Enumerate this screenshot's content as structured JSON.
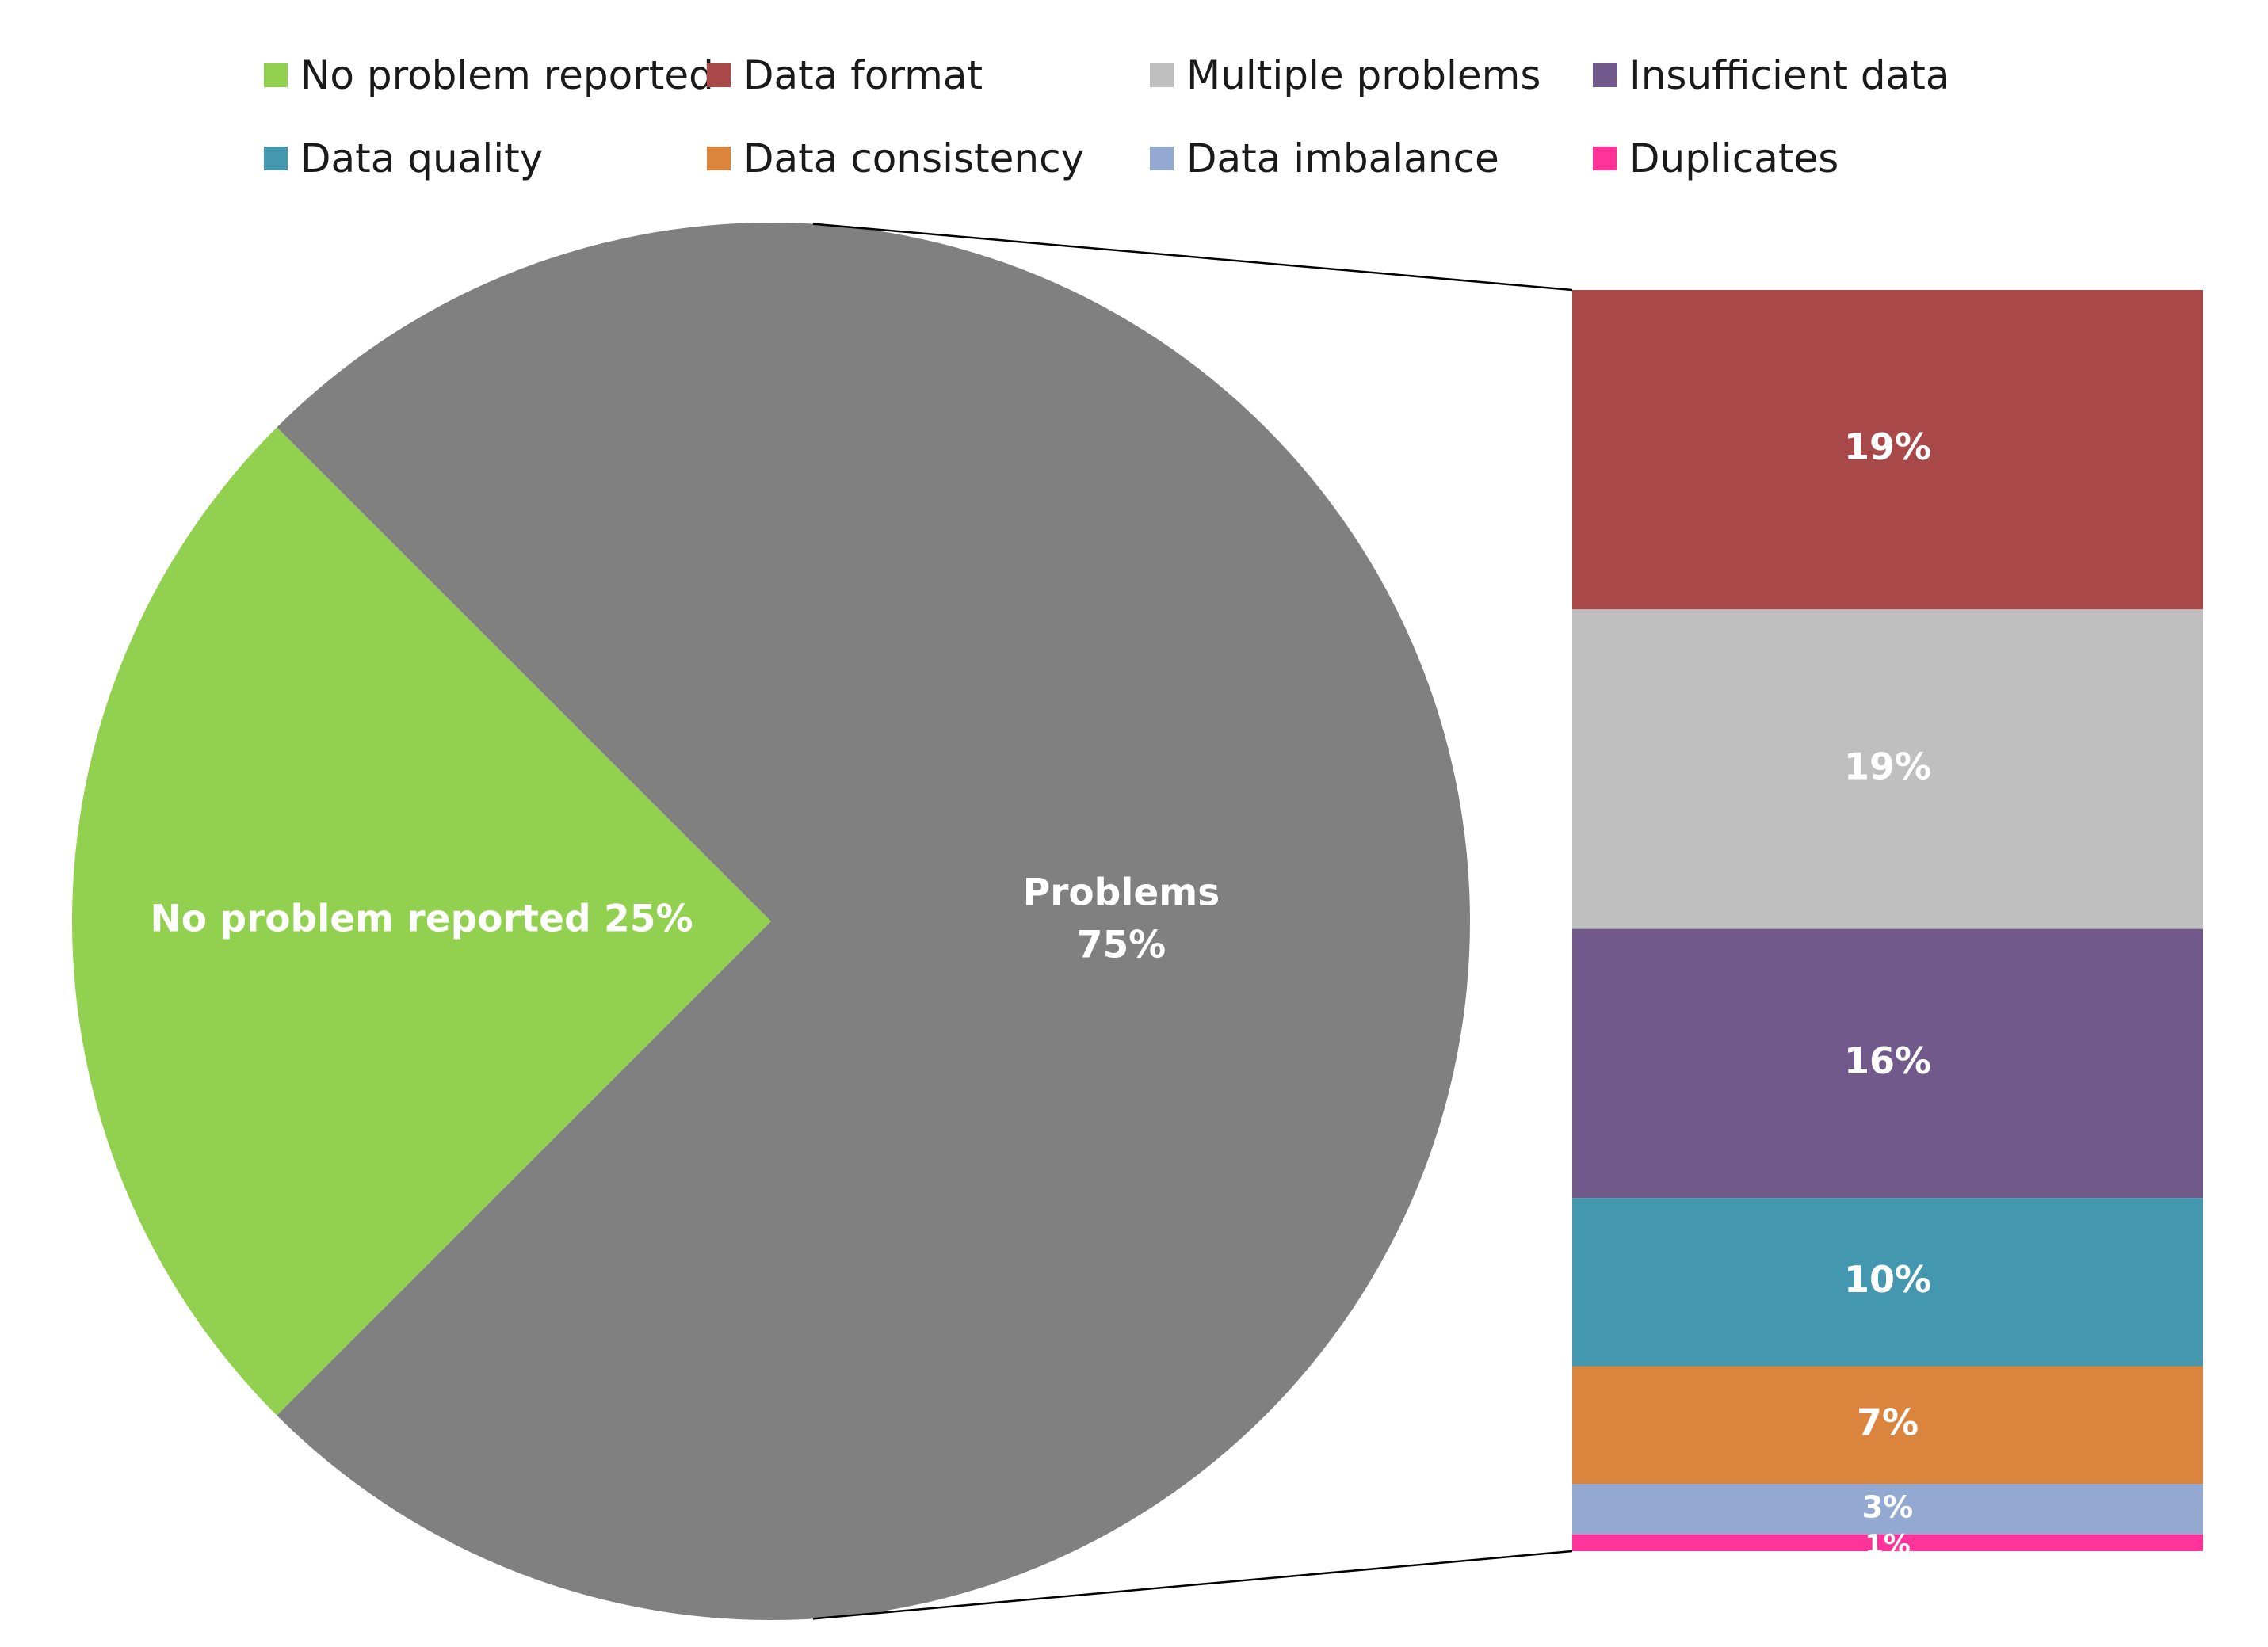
{
  "chart_data": {
    "type": "pie",
    "subtype": "bar-of-pie",
    "legend_position": "top",
    "legend": [
      {
        "name": "No problem reported",
        "color": "#92d050"
      },
      {
        "name": "Data format",
        "color": "#a94848"
      },
      {
        "name": "Multiple problems",
        "color": "#bfbfbf"
      },
      {
        "name": "Insufficient data",
        "color": "#72598c"
      },
      {
        "name": "Data quality",
        "color": "#4398b0"
      },
      {
        "name": "Data consistency",
        "color": "#db843d"
      },
      {
        "name": "Data imbalance",
        "color": "#93a9d1"
      },
      {
        "name": "Duplicates",
        "color": "#ff3399"
      }
    ],
    "pie": [
      {
        "name": "No problem reported",
        "value": 25,
        "label": "No problem reported 25%",
        "color": "#92d050"
      },
      {
        "name": "Problems",
        "value": 75,
        "label_line1": "Problems",
        "label_line2": "75%",
        "color": "#808080"
      }
    ],
    "breakdown": [
      {
        "name": "Data format",
        "value": 19,
        "label": "19%",
        "color": "#a94848"
      },
      {
        "name": "Multiple problems",
        "value": 19,
        "label": "19%",
        "color": "#bfbfbf"
      },
      {
        "name": "Insufficient data",
        "value": 16,
        "label": "16%",
        "color": "#72598c"
      },
      {
        "name": "Data quality",
        "value": 10,
        "label": "10%",
        "color": "#4398b0"
      },
      {
        "name": "Data consistency",
        "value": 7,
        "label": "7%",
        "color": "#db843d"
      },
      {
        "name": "Data imbalance",
        "value": 3,
        "label": "3%",
        "color": "#93a9d1"
      },
      {
        "name": "Duplicates",
        "value": 1,
        "label": "1%",
        "color": "#ff3399"
      }
    ]
  }
}
